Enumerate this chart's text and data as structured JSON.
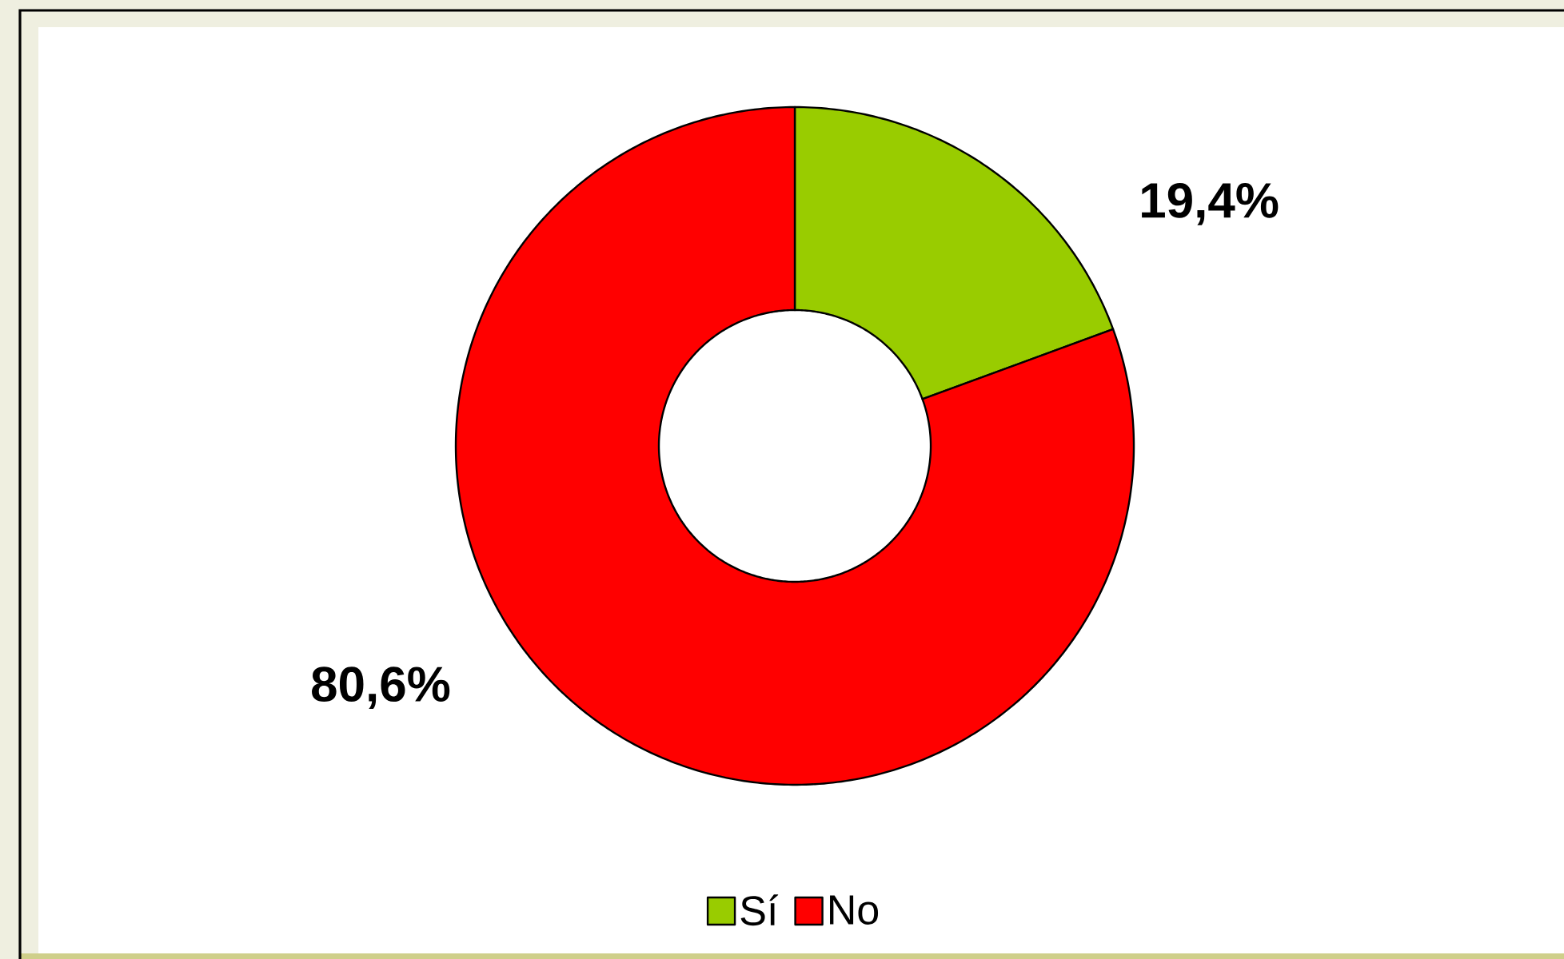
{
  "chart_data": {
    "type": "donut",
    "categories": [
      "Sí",
      "No"
    ],
    "values": [
      19.4,
      80.6
    ],
    "colors": [
      "#99cc00",
      "#ff0000"
    ],
    "value_labels": [
      "19,4%",
      "80,6%"
    ],
    "legend": "bottom"
  }
}
